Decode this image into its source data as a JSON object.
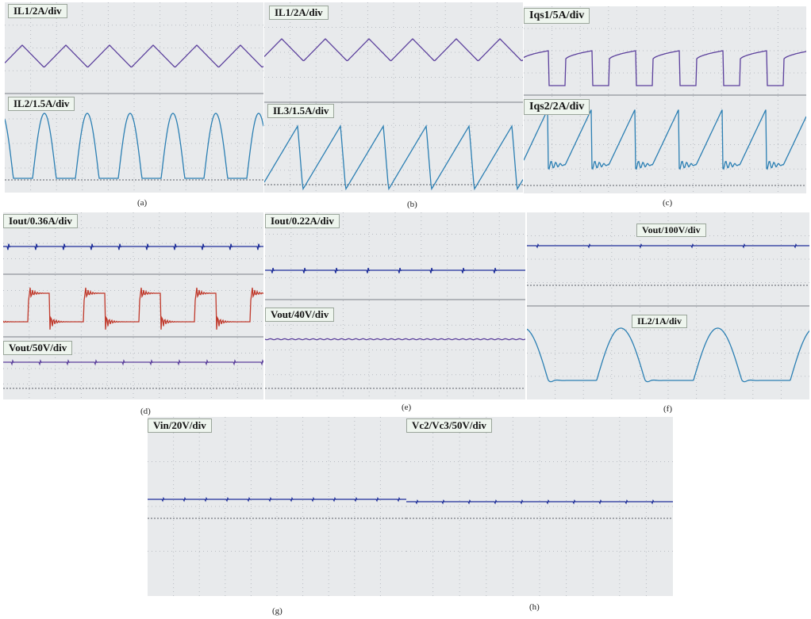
{
  "colors": {
    "screen_bg": "#e8eaec",
    "grid": "#b8bcc2",
    "divider": "#7a7f86",
    "reference": "#5b6068",
    "purple_trace": "#5b3f9c",
    "teal_trace": "#2b7fb3",
    "navy_trace": "#1f2f9a",
    "red_trace": "#c0392b",
    "label_bg": "#eef5ee"
  },
  "figures": [
    {
      "id": "a",
      "caption": "(a)",
      "labels": [
        "IL1/2A/div",
        "IL2/1.5A/div"
      ]
    },
    {
      "id": "b",
      "caption": "(b)",
      "labels": [
        "IL1/2A/div",
        "IL3/1.5A/div"
      ]
    },
    {
      "id": "c",
      "caption": "(c)",
      "labels": [
        "Iqs1/5A/div",
        "Iqs2/2A/div"
      ]
    },
    {
      "id": "d",
      "caption": "(d)",
      "labels": [
        "Iout/0.36A/div",
        "Vout/50V/div"
      ]
    },
    {
      "id": "e",
      "caption": "(e)",
      "labels": [
        "Iout/0.22A/div",
        "Vout/40V/div"
      ]
    },
    {
      "id": "f",
      "caption": "(f)",
      "labels": [
        "Vout/100V/div",
        "IL2/1A/div"
      ]
    },
    {
      "id": "g",
      "caption": "(g)",
      "labels": [
        "Vin/20V/div"
      ]
    },
    {
      "id": "h",
      "caption": "(h)",
      "labels": [
        "Vc2/Vc3/50V/div"
      ]
    }
  ],
  "chart_data": [
    {
      "type": "line",
      "panel": "a",
      "series": [
        {
          "name": "IL1/2A/div",
          "waveform": "triangle",
          "cycles": 6
        },
        {
          "name": "IL2/1.5A/div",
          "waveform": "half-sine pulses",
          "cycles": 6
        }
      ]
    },
    {
      "type": "line",
      "panel": "b",
      "series": [
        {
          "name": "IL1/2A/div",
          "waveform": "triangle",
          "cycles": 6
        },
        {
          "name": "IL3/1.5A/div",
          "waveform": "sawtooth",
          "cycles": 6
        }
      ]
    },
    {
      "type": "line",
      "panel": "c",
      "series": [
        {
          "name": "Iqs1/5A/div",
          "waveform": "rounded pulses",
          "cycles": 6
        },
        {
          "name": "Iqs2/2A/div",
          "waveform": "ramp with ringing",
          "cycles": 6
        }
      ]
    },
    {
      "type": "line",
      "panel": "d",
      "series": [
        {
          "name": "Iout/0.36A/div",
          "waveform": "flat with spikes"
        },
        {
          "name": "",
          "waveform": "square with ringing",
          "cycles": 4
        },
        {
          "name": "Vout/50V/div",
          "waveform": "flat with spikes"
        }
      ]
    },
    {
      "type": "line",
      "panel": "e",
      "series": [
        {
          "name": "Iout/0.22A/div",
          "waveform": "flat with spikes"
        },
        {
          "name": "Vout/40V/div",
          "waveform": "flat"
        }
      ]
    },
    {
      "type": "line",
      "panel": "f",
      "series": [
        {
          "name": "Vout/100V/div",
          "waveform": "flat with spikes"
        },
        {
          "name": "IL2/1A/div",
          "waveform": "half-sine pulses",
          "cycles": 2
        }
      ]
    },
    {
      "type": "line",
      "panel": "g",
      "series": [
        {
          "name": "Vin/20V/div",
          "waveform": "flat with spikes"
        }
      ]
    },
    {
      "type": "line",
      "panel": "h",
      "series": [
        {
          "name": "Vc2/Vc3/50V/div",
          "waveform": "flat with spikes"
        }
      ]
    }
  ]
}
